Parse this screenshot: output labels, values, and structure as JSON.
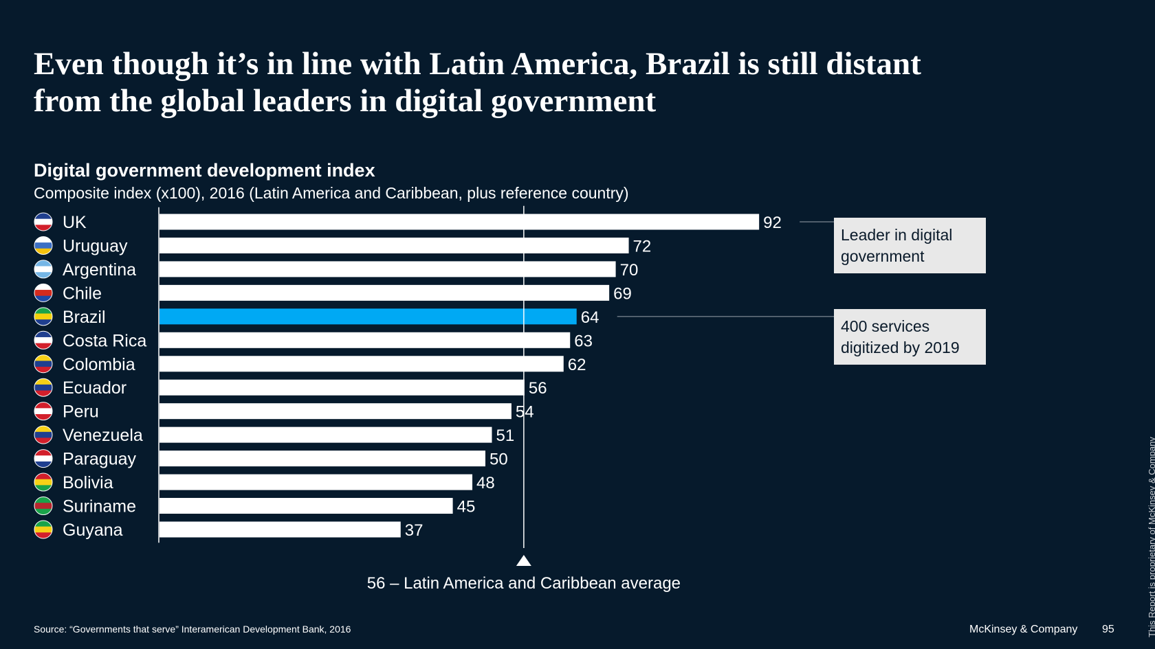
{
  "slide": {
    "headline_line1": "Even though it’s in line with Latin America, Brazil is still distant",
    "headline_line2": "from the global leaders in digital government",
    "source": "Source: “Governments that serve” Interamerican Development Bank, 2016",
    "brand": "McKinsey & Company",
    "page_number": "95",
    "proprietary_note": "This Report is proprietary of McKinsey & Company"
  },
  "chart_data": {
    "type": "bar",
    "orientation": "horizontal",
    "title": "Digital government development index",
    "subtitle": "Composite index (x100), 2016 (Latin America and Caribbean, plus reference country)",
    "xlim": [
      0,
      92
    ],
    "grid": false,
    "categories": [
      "UK",
      "Uruguay",
      "Argentina",
      "Chile",
      "Brazil",
      "Costa Rica",
      "Colombia",
      "Ecuador",
      "Peru",
      "Venezuela",
      "Paraguay",
      "Bolivia",
      "Suriname",
      "Guyana"
    ],
    "values": [
      92,
      72,
      70,
      69,
      64,
      63,
      62,
      56,
      54,
      51,
      50,
      48,
      45,
      37
    ],
    "highlight_category": "Brazil",
    "colors": {
      "bar": "#ffffff",
      "highlight": "#00a9f4",
      "background": "#061a2c"
    },
    "flags": [
      "uk-flag-icon",
      "uruguay-flag-icon",
      "argentina-flag-icon",
      "chile-flag-icon",
      "brazil-flag-icon",
      "costa-rica-flag-icon",
      "colombia-flag-icon",
      "ecuador-flag-icon",
      "peru-flag-icon",
      "venezuela-flag-icon",
      "paraguay-flag-icon",
      "bolivia-flag-icon",
      "suriname-flag-icon",
      "guyana-flag-icon"
    ],
    "reference_line": {
      "value": 56,
      "label": "56 – Latin America and Caribbean average"
    },
    "annotations": [
      {
        "category": "UK",
        "line1": "Leader in digital",
        "line2": "government"
      },
      {
        "category": "Brazil",
        "line1": "400 services",
        "line2": "digitized by 2019"
      }
    ]
  }
}
